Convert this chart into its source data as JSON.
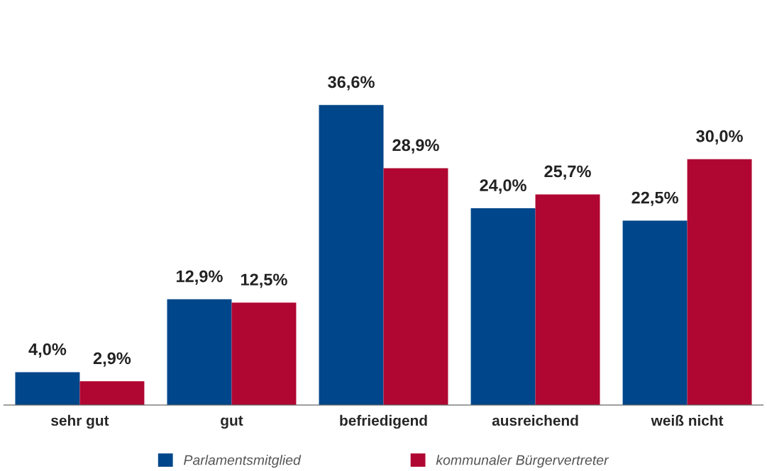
{
  "chart_data": {
    "type": "bar",
    "categories": [
      "sehr gut",
      "gut",
      "befriedigend",
      "ausreichend",
      "weiß nicht"
    ],
    "series": [
      {
        "name": "Parlamentsmitglied",
        "color": "#00468a",
        "values": [
          4.0,
          12.9,
          36.6,
          24.0,
          22.5
        ],
        "value_labels": [
          "4,0%",
          "12,9%",
          "36,6%",
          "24,0%",
          "22,5%"
        ]
      },
      {
        "name": "kommunaler Bürgervertreter",
        "color": "#b00732",
        "values": [
          2.9,
          12.5,
          28.9,
          25.7,
          30.0
        ],
        "value_labels": [
          "2,9%",
          "12,5%",
          "28,9%",
          "25,7%",
          "30,0%"
        ]
      }
    ],
    "legend": "bottom",
    "grid": false
  }
}
